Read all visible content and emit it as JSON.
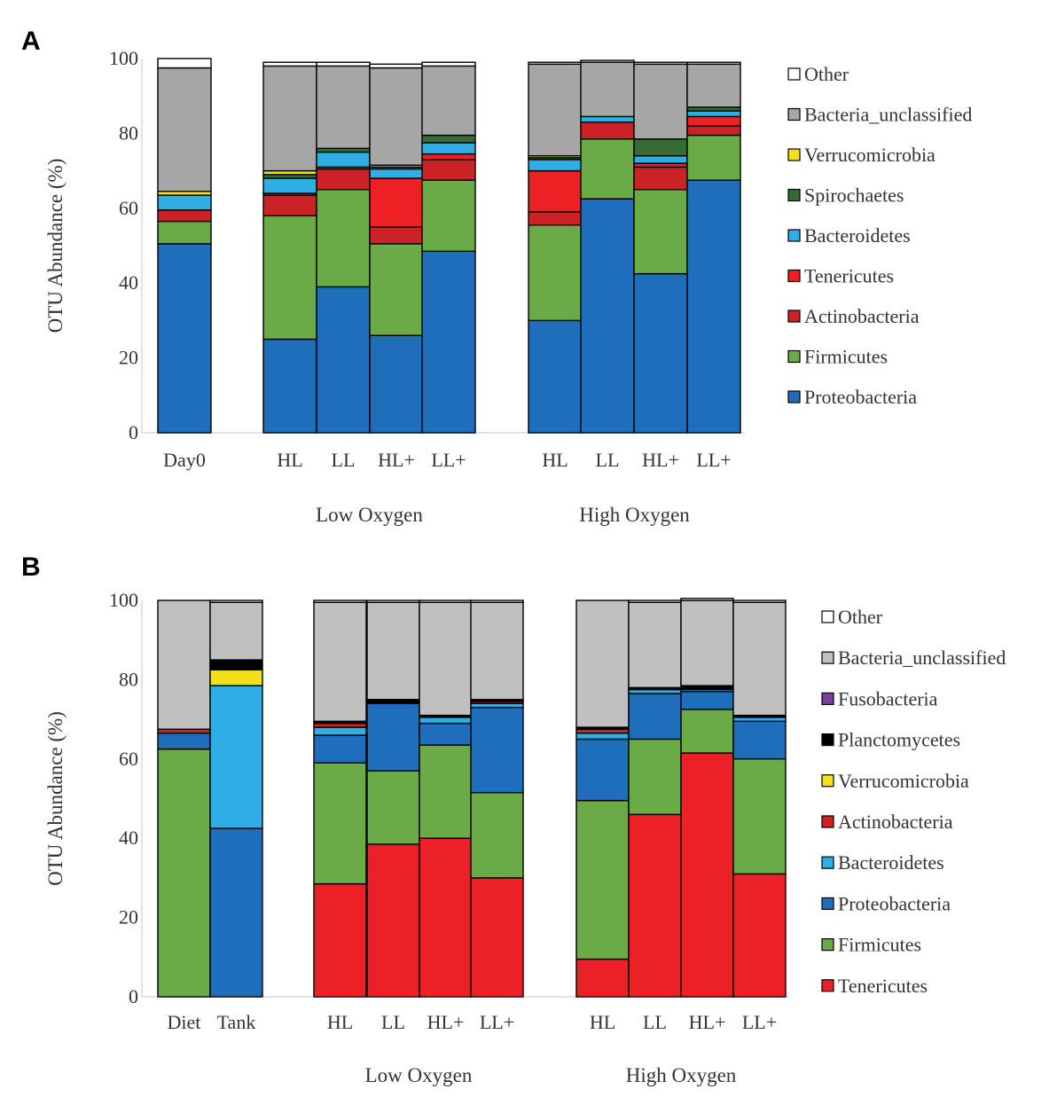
{
  "chart_data": [
    {
      "panel": "A",
      "type": "stacked-bar",
      "ylabel": "OTU Abundance (%)",
      "ylim": [
        0,
        100
      ],
      "yticks": [
        0,
        20,
        40,
        60,
        80,
        100
      ],
      "categories": [
        "Day0",
        "HL",
        "LL",
        "HL+",
        "LL+",
        "HL",
        "LL",
        "HL+",
        "LL+"
      ],
      "groups": [
        {
          "label": "Low Oxygen",
          "first": 1,
          "last": 4
        },
        {
          "label": "High Oxygen",
          "first": 5,
          "last": 8
        }
      ],
      "series": [
        {
          "name": "Proteobacteria",
          "color": "#1f6ebc",
          "values": [
            50.5,
            25,
            39,
            26,
            48.5,
            30,
            62.5,
            42.5,
            67.5
          ]
        },
        {
          "name": "Firmicutes",
          "color": "#6bab47",
          "values": [
            6,
            33,
            26,
            24.5,
            19,
            25.5,
            16,
            22.5,
            12
          ]
        },
        {
          "name": "Actinobacteria",
          "color": "#cc2127",
          "values": [
            3,
            5.5,
            5.5,
            4.5,
            5.5,
            3.5,
            4.5,
            6,
            2.5
          ]
        },
        {
          "name": "Tenericutes",
          "color": "#ed2024",
          "values": [
            0,
            0.5,
            0.5,
            13,
            1.5,
            11,
            0,
            1,
            2.5
          ]
        },
        {
          "name": "Bacteroidetes",
          "color": "#2eaee5",
          "values": [
            4,
            4,
            4,
            2.5,
            3,
            3,
            1.5,
            2,
            1.5
          ]
        },
        {
          "name": "Spirochaetes",
          "color": "#376a34",
          "values": [
            0,
            1,
            1,
            0.5,
            2,
            0.5,
            0,
            4.5,
            1
          ]
        },
        {
          "name": "Verrucomicrobia",
          "color": "#f2e01a",
          "values": [
            1,
            1,
            0,
            0.5,
            0,
            0.5,
            0,
            0,
            0
          ]
        },
        {
          "name": "Bacteria_unclassified",
          "color": "#a6a6a6",
          "values": [
            33,
            28,
            22,
            26,
            18.5,
            24.5,
            14.5,
            20,
            11.5
          ]
        },
        {
          "name": "Other",
          "color": "#ffffff",
          "values": [
            2.5,
            1,
            1,
            1,
            1,
            0.5,
            0.5,
            0.5,
            0.5
          ]
        }
      ],
      "legend_order": [
        "Other",
        "Bacteria_unclassified",
        "Verrucomicrobia",
        "Spirochaetes",
        "Bacteroidetes",
        "Tenericutes",
        "Actinobacteria",
        "Firmicutes",
        "Proteobacteria"
      ]
    },
    {
      "panel": "B",
      "type": "stacked-bar",
      "ylabel": "OTU Abundance (%)",
      "ylim": [
        0,
        100
      ],
      "yticks": [
        0,
        20,
        40,
        60,
        80,
        100
      ],
      "categories": [
        "Diet",
        "Tank",
        "HL",
        "LL",
        "HL+",
        "LL+",
        "HL",
        "LL",
        "HL+",
        "LL+"
      ],
      "groups": [
        {
          "label": "Low Oxygen",
          "first": 2,
          "last": 5
        },
        {
          "label": "High Oxygen",
          "first": 6,
          "last": 9
        }
      ],
      "series": [
        {
          "name": "Tenericutes",
          "color": "#ec2127",
          "values": [
            0,
            0,
            28.5,
            38.5,
            40,
            30,
            9.5,
            46,
            61.5,
            31
          ]
        },
        {
          "name": "Firmicutes",
          "color": "#6bab47",
          "values": [
            62.5,
            0,
            30.5,
            18.5,
            23.5,
            21.5,
            40,
            19,
            11,
            29
          ]
        },
        {
          "name": "Proteobacteria",
          "color": "#1f6ebc",
          "values": [
            4,
            42.5,
            7,
            17,
            5.5,
            21.5,
            15.5,
            11.5,
            4.5,
            9.5
          ]
        },
        {
          "name": "Bacteroidetes",
          "color": "#2eaee5",
          "values": [
            0,
            36,
            2,
            0,
            1.5,
            1,
            1.5,
            1,
            0.5,
            1
          ]
        },
        {
          "name": "Actinobacteria",
          "color": "#cc2127",
          "values": [
            1,
            0,
            1,
            0,
            0,
            0.5,
            1,
            0,
            0,
            0
          ]
        },
        {
          "name": "Verrucomicrobia",
          "color": "#f2e01a",
          "values": [
            0,
            4,
            0,
            0,
            0,
            0,
            0,
            0,
            0,
            0
          ]
        },
        {
          "name": "Planctomycetes",
          "color": "#000000",
          "values": [
            0,
            2.5,
            0.5,
            1,
            0.5,
            0.5,
            0.5,
            0.5,
            1,
            0.5
          ]
        },
        {
          "name": "Fusobacteria",
          "color": "#7b3f99",
          "values": [
            0,
            0,
            0,
            0,
            0,
            0,
            0,
            0,
            0,
            0
          ]
        },
        {
          "name": "Bacteria_unclassified",
          "color": "#c0c0c0",
          "values": [
            32.5,
            14.5,
            30,
            24.5,
            28.5,
            24.5,
            32,
            21.5,
            21.5,
            28.5
          ]
        },
        {
          "name": "Other",
          "color": "#ffffff",
          "values": [
            0,
            0.5,
            0.5,
            0.5,
            0.5,
            0.5,
            0,
            0.5,
            0.5,
            0.5
          ]
        }
      ],
      "legend_order": [
        "Other",
        "Bacteria_unclassified",
        "Fusobacteria",
        "Planctomycetes",
        "Verrucomicrobia",
        "Actinobacteria",
        "Bacteroidetes",
        "Proteobacteria",
        "Firmicutes",
        "Tenericutes"
      ]
    }
  ]
}
